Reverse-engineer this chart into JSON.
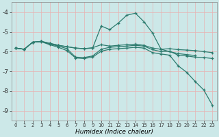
{
  "xlabel": "Humidex (Indice chaleur)",
  "background_color": "#cce8e8",
  "grid_color": "#e8b0b0",
  "line_color": "#2d7b6e",
  "xlim": [
    -0.5,
    23.5
  ],
  "ylim": [
    -9.5,
    -3.5
  ],
  "yticks": [
    -9,
    -8,
    -7,
    -6,
    -5,
    -4
  ],
  "xticks": [
    0,
    1,
    2,
    3,
    4,
    5,
    6,
    7,
    8,
    9,
    10,
    11,
    12,
    13,
    14,
    15,
    16,
    17,
    18,
    19,
    20,
    21,
    22,
    23
  ],
  "series": [
    {
      "x": [
        0,
        1,
        2,
        3,
        4,
        5,
        6,
        7,
        8,
        9,
        10,
        11,
        12,
        13,
        14,
        15,
        16,
        17,
        18,
        19,
        20,
        21
      ],
      "y": [
        -5.82,
        -5.88,
        -5.52,
        -5.48,
        -5.58,
        -5.68,
        -5.75,
        -5.82,
        -5.85,
        -5.82,
        -4.7,
        -4.88,
        -4.55,
        -4.15,
        -4.05,
        -4.48,
        -5.05,
        -5.88,
        -6.0,
        -6.1,
        -6.15,
        -6.2
      ]
    },
    {
      "x": [
        0,
        1,
        2,
        3,
        4,
        5,
        6,
        7,
        8,
        9,
        10,
        11,
        12,
        13,
        14,
        15,
        16,
        17,
        18,
        19,
        20,
        21,
        22,
        23
      ],
      "y": [
        -5.82,
        -5.88,
        -5.52,
        -5.48,
        -5.58,
        -5.68,
        -5.75,
        -5.82,
        -5.85,
        -5.8,
        -5.65,
        -5.72,
        -5.68,
        -5.65,
        -5.62,
        -5.68,
        -5.82,
        -5.88,
        -5.85,
        -5.9,
        -5.92,
        -5.95,
        -6.0,
        -6.05
      ]
    },
    {
      "x": [
        0,
        1,
        2,
        3,
        4,
        5,
        6,
        7,
        8,
        9,
        10,
        11,
        12,
        13,
        14,
        15,
        16,
        17,
        18,
        19,
        20,
        21,
        22,
        23
      ],
      "y": [
        -5.82,
        -5.88,
        -5.52,
        -5.48,
        -5.62,
        -5.72,
        -5.85,
        -6.28,
        -6.3,
        -6.22,
        -5.88,
        -5.78,
        -5.75,
        -5.72,
        -5.68,
        -5.72,
        -5.9,
        -6.0,
        -5.98,
        -6.18,
        -6.22,
        -6.28,
        -6.3,
        -6.35
      ]
    },
    {
      "x": [
        0,
        1,
        2,
        3,
        4,
        5,
        6,
        7,
        8,
        9,
        10,
        11,
        12,
        13,
        14,
        15,
        16,
        17,
        18,
        19,
        20,
        21,
        22,
        23
      ],
      "y": [
        -5.82,
        -5.88,
        -5.52,
        -5.5,
        -5.65,
        -5.78,
        -5.95,
        -6.32,
        -6.35,
        -6.28,
        -5.98,
        -5.88,
        -5.85,
        -5.82,
        -5.78,
        -5.82,
        -6.05,
        -6.12,
        -6.18,
        -6.72,
        -7.05,
        -7.52,
        -7.95,
        -8.72
      ]
    }
  ]
}
